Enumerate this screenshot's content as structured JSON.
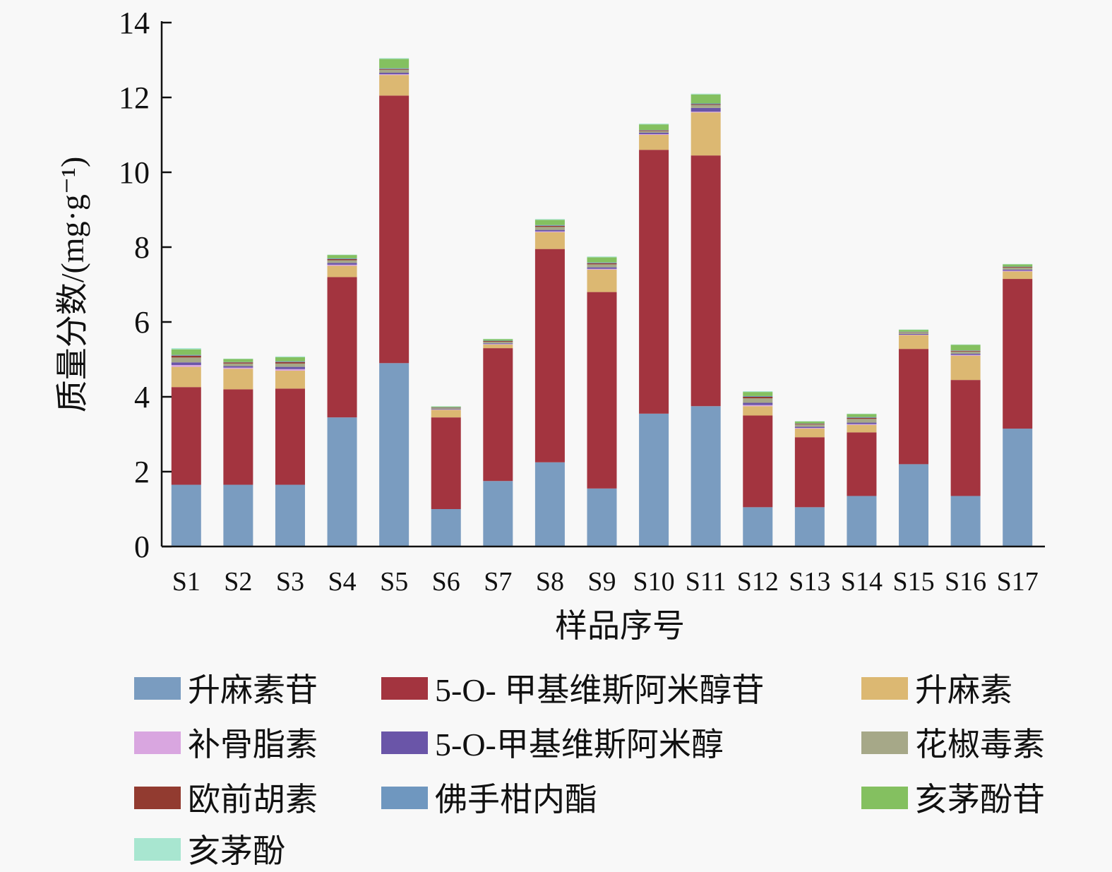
{
  "chart_data": {
    "type": "bar",
    "stacked": true,
    "title": "",
    "xlabel": "样品序号",
    "ylabel": "质量分数/(mg·g⁻¹)",
    "ylim": [
      0,
      14
    ],
    "yticks": [
      0,
      2,
      4,
      6,
      8,
      10,
      12,
      14
    ],
    "grid": false,
    "legend_position": "bottom",
    "categories": [
      "S1",
      "S2",
      "S3",
      "S4",
      "S5",
      "S6",
      "S7",
      "S8",
      "S9",
      "S10",
      "S11",
      "S12",
      "S13",
      "S14",
      "S15",
      "S16",
      "S17"
    ],
    "series": [
      {
        "name": "升麻素苷",
        "color": "#7a9cc0",
        "values": [
          1.65,
          1.65,
          1.65,
          3.45,
          4.9,
          1.0,
          1.75,
          2.25,
          1.55,
          3.55,
          3.75,
          1.05,
          1.05,
          1.35,
          2.2,
          1.35,
          3.15
        ]
      },
      {
        "name": "5-O- 甲基维斯阿米醇苷",
        "color": "#a3343f",
        "values": [
          2.61,
          2.55,
          2.57,
          3.75,
          7.15,
          2.45,
          3.55,
          5.7,
          5.25,
          7.05,
          6.7,
          2.45,
          1.87,
          1.7,
          3.08,
          3.1,
          4.0
        ]
      },
      {
        "name": "升麻素",
        "color": "#dcb872",
        "values": [
          0.54,
          0.55,
          0.48,
          0.3,
          0.55,
          0.2,
          0.1,
          0.45,
          0.6,
          0.4,
          1.15,
          0.25,
          0.23,
          0.2,
          0.37,
          0.65,
          0.2
        ]
      },
      {
        "name": "补骨脂素",
        "color": "#d9a6e0",
        "values": [
          0.05,
          0.03,
          0.04,
          0.03,
          0.02,
          0.01,
          0.01,
          0.02,
          0.02,
          0.02,
          0.02,
          0.03,
          0.02,
          0.02,
          0.01,
          0.02,
          0.02
        ]
      },
      {
        "name": "5-O-甲基维斯阿米醇",
        "color": "#6a55a8",
        "values": [
          0.07,
          0.04,
          0.06,
          0.05,
          0.04,
          0.01,
          0.02,
          0.04,
          0.04,
          0.04,
          0.1,
          0.06,
          0.03,
          0.04,
          0.02,
          0.03,
          0.03
        ]
      },
      {
        "name": "花椒毒素",
        "color": "#a6a888",
        "values": [
          0.13,
          0.07,
          0.09,
          0.07,
          0.08,
          0.03,
          0.04,
          0.08,
          0.08,
          0.04,
          0.08,
          0.12,
          0.06,
          0.1,
          0.04,
          0.06,
          0.05
        ]
      },
      {
        "name": "欧前胡素",
        "color": "#923b30",
        "values": [
          0.05,
          0.03,
          0.04,
          0.03,
          0.02,
          0.01,
          0.02,
          0.03,
          0.03,
          0.02,
          0.02,
          0.04,
          0.02,
          0.03,
          0.01,
          0.02,
          0.02
        ]
      },
      {
        "name": "佛手柑内酯",
        "color": "#6f97bf",
        "values": [
          0.02,
          0.01,
          0.02,
          0.02,
          0.02,
          0.01,
          0.01,
          0.02,
          0.02,
          0.01,
          0.02,
          0.02,
          0.01,
          0.02,
          0.01,
          0.01,
          0.01
        ]
      },
      {
        "name": "亥茅酚苷",
        "color": "#84c060",
        "values": [
          0.15,
          0.08,
          0.11,
          0.09,
          0.25,
          0.02,
          0.04,
          0.14,
          0.14,
          0.15,
          0.24,
          0.11,
          0.05,
          0.08,
          0.05,
          0.15,
          0.06
        ]
      },
      {
        "name": "亥茅酚",
        "color": "#a8e6d0",
        "values": [
          0.03,
          0.01,
          0.02,
          0.01,
          0.02,
          0.01,
          0.01,
          0.02,
          0.02,
          0.02,
          0.02,
          0.02,
          0.01,
          0.01,
          0.01,
          0.01,
          0.01
        ]
      }
    ]
  }
}
